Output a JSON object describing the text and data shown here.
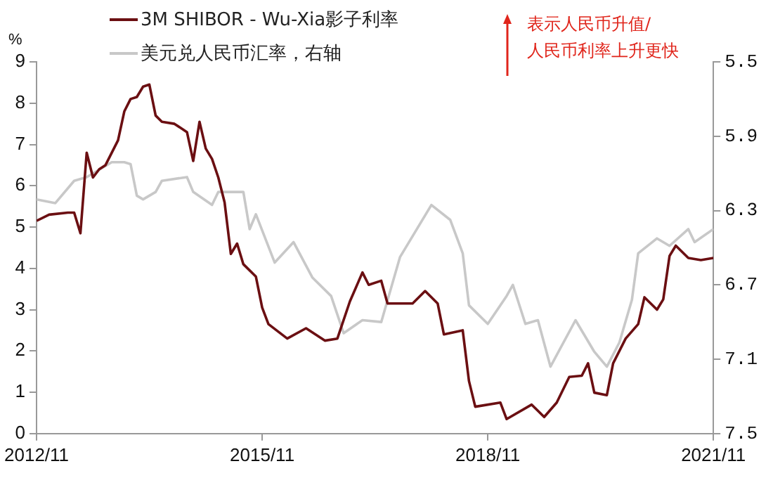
{
  "chart_data": {
    "type": "line",
    "ylabel": "%",
    "legend": "top left",
    "grid": false,
    "marker": "none",
    "line_style": "solid",
    "xlim": [
      "2012-11",
      "2021-11"
    ],
    "xticks": [
      {
        "value": "2012-11",
        "label": "2012/11"
      },
      {
        "value": "2015-11",
        "label": "2015/11"
      },
      {
        "value": "2018-11",
        "label": "2018/11"
      },
      {
        "value": "2021-11",
        "label": "2021/11"
      }
    ],
    "ylim": [
      0,
      9
    ],
    "yticks": [
      0,
      1,
      2,
      3,
      4,
      5,
      6,
      7,
      8,
      9
    ],
    "y2lim": [
      7.5,
      5.5
    ],
    "y2ticks": [
      5.5,
      5.9,
      6.3,
      6.7,
      7.1,
      7.5
    ],
    "annotations": [
      "表示人民币升值/\n人民币利率上升更快"
    ],
    "series": [
      {
        "name": "3M SHIBOR - Wu-Xia影子利率",
        "color": "#6b0f12",
        "x": [
          "2012-11",
          "2013-01",
          "2013-04",
          "2013-05",
          "2013-06",
          "2013-07",
          "2013-08",
          "2013-09",
          "2013-10",
          "2013-12",
          "2014-01",
          "2014-02",
          "2014-03",
          "2014-04",
          "2014-05",
          "2014-06",
          "2014-07",
          "2014-09",
          "2014-11",
          "2014-12",
          "2015-01",
          "2015-02",
          "2015-03",
          "2015-04",
          "2015-05",
          "2015-06",
          "2015-07",
          "2015-08",
          "2015-10",
          "2015-11",
          "2015-12",
          "2016-03",
          "2016-06",
          "2016-09",
          "2016-11",
          "2017-01",
          "2017-03",
          "2017-04",
          "2017-06",
          "2017-07",
          "2017-11",
          "2018-01",
          "2018-03",
          "2018-04",
          "2018-07",
          "2018-08",
          "2018-09",
          "2019-01",
          "2019-02",
          "2019-06",
          "2019-08",
          "2019-10",
          "2019-12",
          "2020-02",
          "2020-03",
          "2020-04",
          "2020-06",
          "2020-07",
          "2020-09",
          "2020-11",
          "2020-12",
          "2021-02",
          "2021-03",
          "2021-04",
          "2021-05",
          "2021-07",
          "2021-09",
          "2021-11"
        ],
        "values": [
          5.15,
          5.3,
          5.35,
          5.35,
          4.85,
          6.8,
          6.2,
          6.4,
          6.5,
          7.1,
          7.8,
          8.1,
          8.15,
          8.4,
          8.45,
          7.7,
          7.55,
          7.5,
          7.3,
          6.6,
          7.55,
          6.9,
          6.65,
          6.2,
          5.6,
          4.35,
          4.6,
          4.1,
          3.8,
          3.05,
          2.65,
          2.3,
          2.55,
          2.25,
          2.3,
          3.2,
          3.9,
          3.6,
          3.7,
          3.15,
          3.15,
          3.45,
          3.15,
          2.4,
          2.5,
          1.27,
          0.65,
          0.75,
          0.35,
          0.7,
          0.4,
          0.75,
          1.37,
          1.4,
          1.7,
          0.99,
          0.93,
          1.7,
          2.3,
          2.65,
          3.3,
          3.0,
          3.25,
          4.3,
          4.55,
          4.25,
          4.2,
          4.25
        ]
      },
      {
        "name": "美元兑人民币汇率，右轴",
        "color": "#c8c8c8",
        "axis": "y2",
        "x": [
          "2012-11",
          "2013-02",
          "2013-05",
          "2013-07",
          "2013-11",
          "2014-01",
          "2014-02",
          "2014-03",
          "2014-04",
          "2014-06",
          "2014-07",
          "2014-11",
          "2014-12",
          "2015-03",
          "2015-04",
          "2015-08",
          "2015-09",
          "2015-10",
          "2016-01",
          "2016-04",
          "2016-07",
          "2016-10",
          "2016-12",
          "2017-03",
          "2017-06",
          "2017-09",
          "2018-02",
          "2018-05",
          "2018-07",
          "2018-08",
          "2018-11",
          "2019-02",
          "2019-03",
          "2019-05",
          "2019-07",
          "2019-09",
          "2020-01",
          "2020-04",
          "2020-06",
          "2020-08",
          "2020-10",
          "2020-11",
          "2021-02",
          "2021-04",
          "2021-07",
          "2021-08",
          "2021-11"
        ],
        "values": [
          6.24,
          6.26,
          6.14,
          6.12,
          6.04,
          6.04,
          6.05,
          6.22,
          6.24,
          6.2,
          6.14,
          6.12,
          6.2,
          6.27,
          6.2,
          6.2,
          6.4,
          6.32,
          6.58,
          6.47,
          6.66,
          6.76,
          6.96,
          6.89,
          6.9,
          6.55,
          6.27,
          6.35,
          6.53,
          6.81,
          6.91,
          6.76,
          6.7,
          6.91,
          6.89,
          7.14,
          6.89,
          7.06,
          7.14,
          7.01,
          6.78,
          6.53,
          6.45,
          6.49,
          6.4,
          6.47,
          6.4
        ]
      }
    ]
  }
}
